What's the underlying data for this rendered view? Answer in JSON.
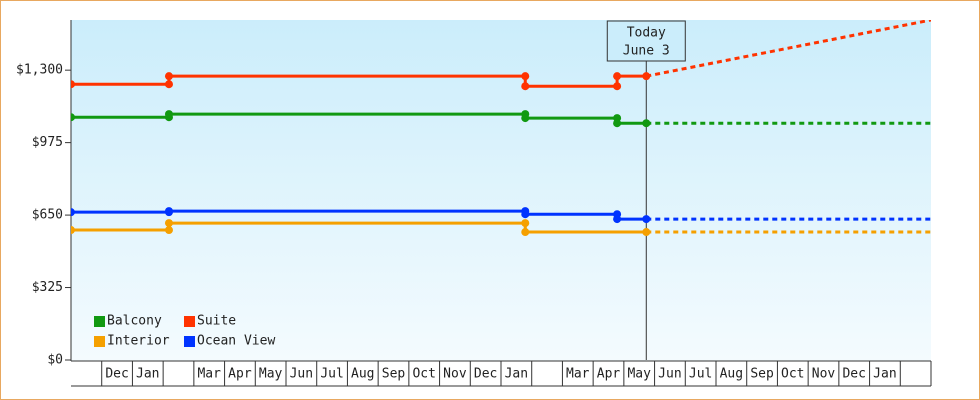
{
  "chart_data": {
    "type": "step-line",
    "categories": [
      null,
      "Dec",
      "Jan",
      null,
      "Mar",
      "Apr",
      "May",
      "Jun",
      "Jul",
      "Aug",
      "Sep",
      "Oct",
      "Nov",
      "Dec",
      "Jan",
      null,
      "Mar",
      "Apr",
      "May",
      "Jun",
      "Jul",
      "Aug",
      "Sep",
      "Oct",
      "Nov",
      "Dec",
      "Jan",
      null
    ],
    "xlim": [
      0,
      28
    ],
    "ylim": [
      0,
      1525
    ],
    "yticks": [
      {
        "value": 0,
        "label": "$0"
      },
      {
        "value": 325,
        "label": "$325"
      },
      {
        "value": 650,
        "label": "$650"
      },
      {
        "value": 975,
        "label": "$975"
      },
      {
        "value": 1300,
        "label": "$1,300"
      }
    ],
    "series": [
      {
        "name": "Balcony",
        "color": "#119911",
        "x": [
          0,
          3.19,
          3.19,
          14.79,
          14.79,
          17.78,
          17.78,
          18.73
        ],
        "values": [
          1089,
          1089,
          1103,
          1103,
          1085,
          1085,
          1062,
          1062
        ],
        "projection": {
          "x": [
            18.73,
            28
          ],
          "values": [
            1062,
            1062
          ]
        }
      },
      {
        "name": "Suite",
        "color": "#ff3300",
        "x": [
          0,
          3.19,
          3.19,
          14.79,
          14.79,
          17.78,
          17.78,
          18.73
        ],
        "values": [
          1237,
          1237,
          1273,
          1273,
          1228,
          1228,
          1273,
          1273
        ],
        "projection": {
          "x": [
            18.73,
            28
          ],
          "values": [
            1273,
            1525
          ]
        }
      },
      {
        "name": "Interior",
        "color": "#f5a000",
        "x": [
          0,
          3.19,
          3.19,
          14.79,
          14.79,
          18.73
        ],
        "values": [
          583,
          583,
          614,
          614,
          574,
          574
        ],
        "projection": {
          "x": [
            18.73,
            28
          ],
          "values": [
            574,
            574
          ]
        }
      },
      {
        "name": "Ocean View",
        "color": "#0033ff",
        "x": [
          0,
          3.19,
          3.19,
          14.79,
          14.79,
          17.78,
          17.78,
          18.73
        ],
        "values": [
          663,
          663,
          668,
          668,
          654,
          654,
          632,
          632
        ],
        "projection": {
          "x": [
            18.73,
            28
          ],
          "values": [
            632,
            632
          ]
        }
      }
    ],
    "annotation": {
      "x": 18.73,
      "lines": [
        "Today",
        "June 3"
      ]
    }
  }
}
